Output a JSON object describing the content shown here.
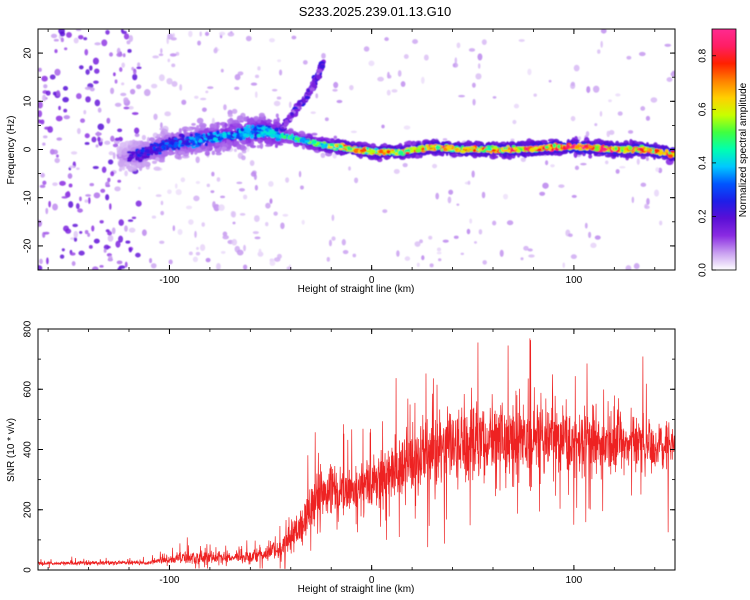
{
  "figure_title": "S233.2025.239.01.13.G10",
  "chart_data": [
    {
      "type": "heatmap",
      "xlabel": "Height of straight line (km)",
      "ylabel": "Frequency (Hz)",
      "xlim": [
        -165,
        150
      ],
      "ylim": [
        -25,
        25
      ],
      "xticks": [
        -100,
        0,
        100
      ],
      "yticks": [
        -20,
        -10,
        0,
        10,
        20
      ],
      "colorbar": {
        "label": "Normalized spectral amplitude",
        "range": [
          0,
          0.9
        ],
        "ticks": [
          0.0,
          0.2,
          0.4,
          0.6,
          0.8
        ],
        "tick_labels": [
          "0.0",
          "0.2",
          "0.4",
          "0.6",
          "0.8"
        ],
        "colormap": [
          "#ffffff",
          "#c89ef0",
          "#8a2be2",
          "#5a0fd6",
          "#1e1ee8",
          "#0055ff",
          "#00c8ff",
          "#00ffb0",
          "#40ff40",
          "#c8ff00",
          "#ffd000",
          "#ff8000",
          "#ff2000",
          "#ff1e64",
          "#ff2a90"
        ]
      },
      "ridge": [
        {
          "x": -165,
          "f": -3,
          "a": 0.05
        },
        {
          "x": -130,
          "f": -2,
          "a": 0.12
        },
        {
          "x": -115,
          "f": -1,
          "a": 0.28
        },
        {
          "x": -100,
          "f": 1,
          "a": 0.33
        },
        {
          "x": -85,
          "f": 2,
          "a": 0.38
        },
        {
          "x": -70,
          "f": 3,
          "a": 0.42
        },
        {
          "x": -55,
          "f": 4,
          "a": 0.45
        },
        {
          "x": -45,
          "f": 3,
          "a": 0.48
        },
        {
          "x": -35,
          "f": 2,
          "a": 0.5
        },
        {
          "x": -25,
          "f": 1,
          "a": 0.6
        },
        {
          "x": -15,
          "f": 0.5,
          "a": 0.72
        },
        {
          "x": 0,
          "f": -0.5,
          "a": 0.75
        },
        {
          "x": 15,
          "f": -0.5,
          "a": 0.72
        },
        {
          "x": 30,
          "f": 0.5,
          "a": 0.8
        },
        {
          "x": 45,
          "f": 0,
          "a": 0.78
        },
        {
          "x": 60,
          "f": 0,
          "a": 0.8
        },
        {
          "x": 75,
          "f": 0,
          "a": 0.85
        },
        {
          "x": 90,
          "f": 0.5,
          "a": 0.85
        },
        {
          "x": 105,
          "f": 0.5,
          "a": 0.88
        },
        {
          "x": 120,
          "f": 0,
          "a": 0.85
        },
        {
          "x": 135,
          "f": 0,
          "a": 0.82
        },
        {
          "x": 150,
          "f": -1,
          "a": 0.8
        }
      ],
      "branch": [
        {
          "x": -45,
          "f": 4
        },
        {
          "x": -38,
          "f": 8
        },
        {
          "x": -32,
          "f": 11
        },
        {
          "x": -28,
          "f": 14
        },
        {
          "x": -24,
          "f": 18
        }
      ]
    },
    {
      "type": "line",
      "xlabel": "Height of straight line (km)",
      "ylabel": "SNR (10 * v/v)",
      "xlim": [
        -165,
        150
      ],
      "ylim": [
        0,
        800
      ],
      "xticks": [
        -100,
        0,
        100
      ],
      "yticks": [
        0,
        200,
        400,
        600,
        800
      ],
      "color": "#ee2222",
      "envelope": [
        {
          "x": -165,
          "base": 22,
          "spread": 10
        },
        {
          "x": -110,
          "base": 25,
          "spread": 12
        },
        {
          "x": -95,
          "base": 40,
          "spread": 35
        },
        {
          "x": -85,
          "base": 40,
          "spread": 40
        },
        {
          "x": -60,
          "base": 45,
          "spread": 35
        },
        {
          "x": -45,
          "base": 70,
          "spread": 70
        },
        {
          "x": -35,
          "base": 150,
          "spread": 120
        },
        {
          "x": -25,
          "base": 260,
          "spread": 150
        },
        {
          "x": -10,
          "base": 270,
          "spread": 120
        },
        {
          "x": 0,
          "base": 290,
          "spread": 150
        },
        {
          "x": 20,
          "base": 360,
          "spread": 200
        },
        {
          "x": 40,
          "base": 420,
          "spread": 230
        },
        {
          "x": 60,
          "base": 430,
          "spread": 250
        },
        {
          "x": 80,
          "base": 430,
          "spread": 220
        },
        {
          "x": 100,
          "base": 440,
          "spread": 200
        },
        {
          "x": 120,
          "base": 430,
          "spread": 180
        },
        {
          "x": 135,
          "base": 420,
          "spread": 150
        },
        {
          "x": 150,
          "base": 420,
          "spread": 140
        }
      ]
    }
  ]
}
